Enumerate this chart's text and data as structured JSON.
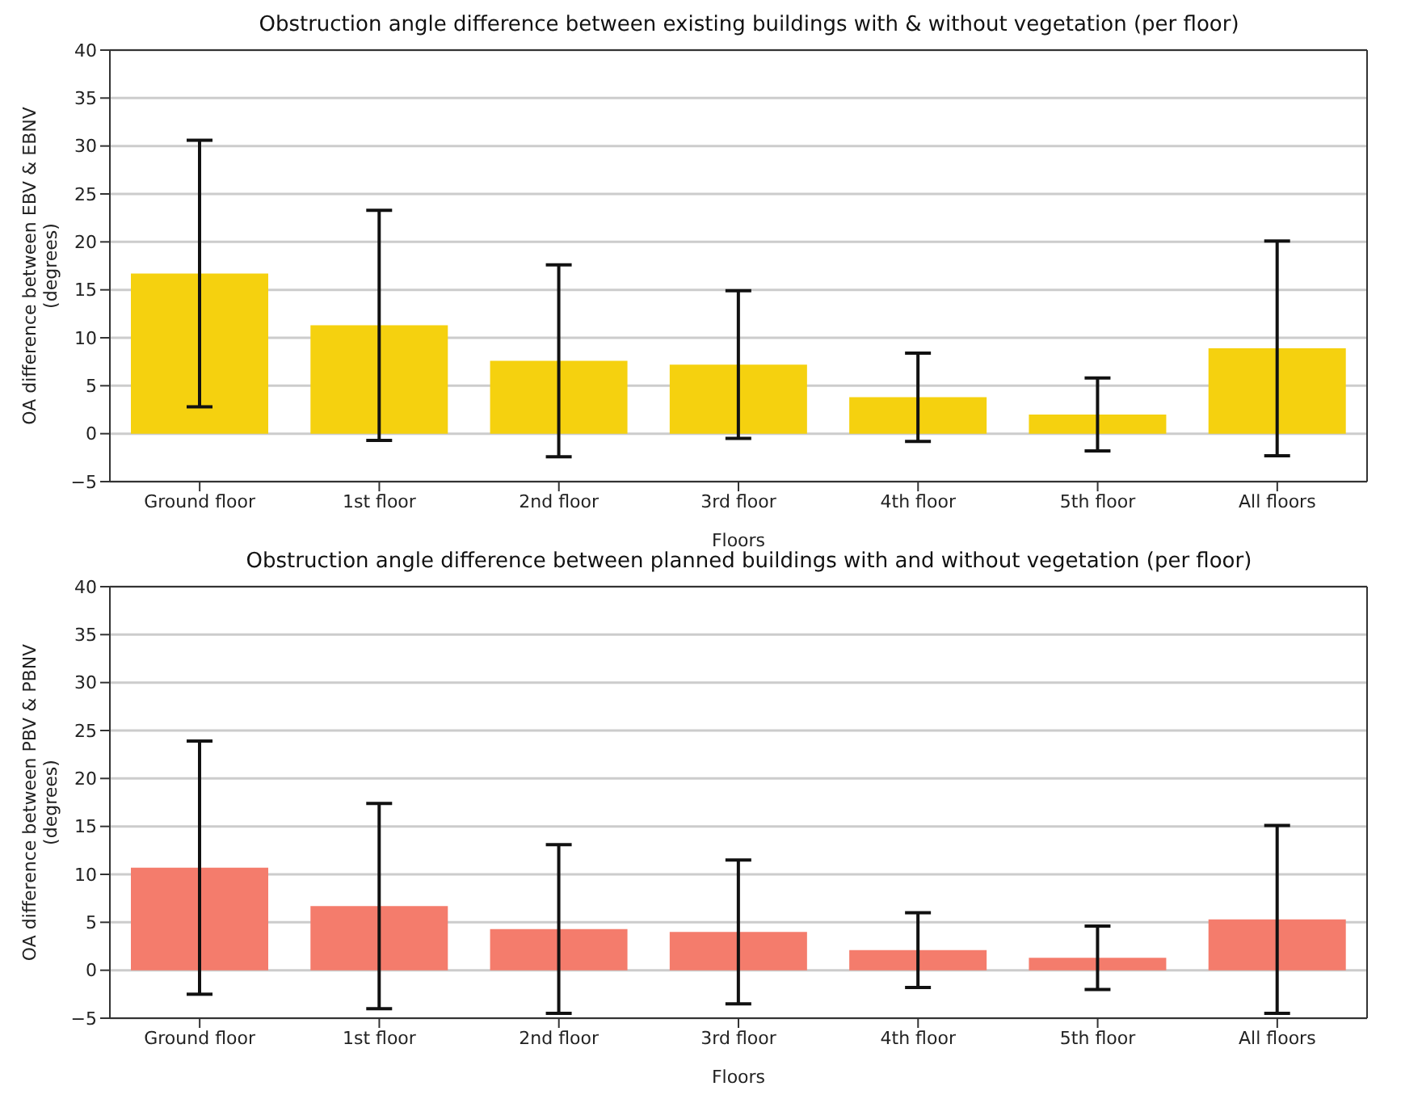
{
  "chart_data": [
    {
      "type": "bar",
      "title": "Obstruction angle difference between existing buildings with & without vegetation (per floor)",
      "xlabel": "Floors",
      "ylabel": "OA difference between EBV & EBNV (degrees)",
      "categories": [
        "Ground floor",
        "1st floor",
        "2nd floor",
        "3rd floor",
        "4th floor",
        "5th floor",
        "All floors"
      ],
      "values": [
        16.7,
        11.3,
        7.6,
        7.2,
        3.8,
        2.0,
        8.9
      ],
      "errors": [
        13.9,
        12.0,
        10.0,
        7.7,
        4.6,
        3.8,
        11.2
      ],
      "color": "#f5d10f",
      "ylim": [
        -5,
        40
      ],
      "yticks": [
        -5,
        0,
        5,
        10,
        15,
        20,
        25,
        30,
        35,
        40
      ],
      "grid": "y",
      "legend": false
    },
    {
      "type": "bar",
      "title": "Obstruction angle difference between planned buildings with and without vegetation (per floor)",
      "xlabel": "Floors",
      "ylabel": "OA difference between PBV & PBNV (degrees)",
      "categories": [
        "Ground floor",
        "1st floor",
        "2nd floor",
        "3rd floor",
        "4th floor",
        "5th floor",
        "All floors"
      ],
      "values": [
        10.7,
        6.7,
        4.3,
        4.0,
        2.1,
        1.3,
        5.3
      ],
      "errors": [
        13.2,
        10.7,
        8.8,
        7.5,
        3.9,
        3.3,
        9.8
      ],
      "color": "#f47c6c",
      "ylim": [
        -5,
        40
      ],
      "yticks": [
        -5,
        0,
        5,
        10,
        15,
        20,
        25,
        30,
        35,
        40
      ],
      "grid": "y",
      "legend": false
    }
  ]
}
